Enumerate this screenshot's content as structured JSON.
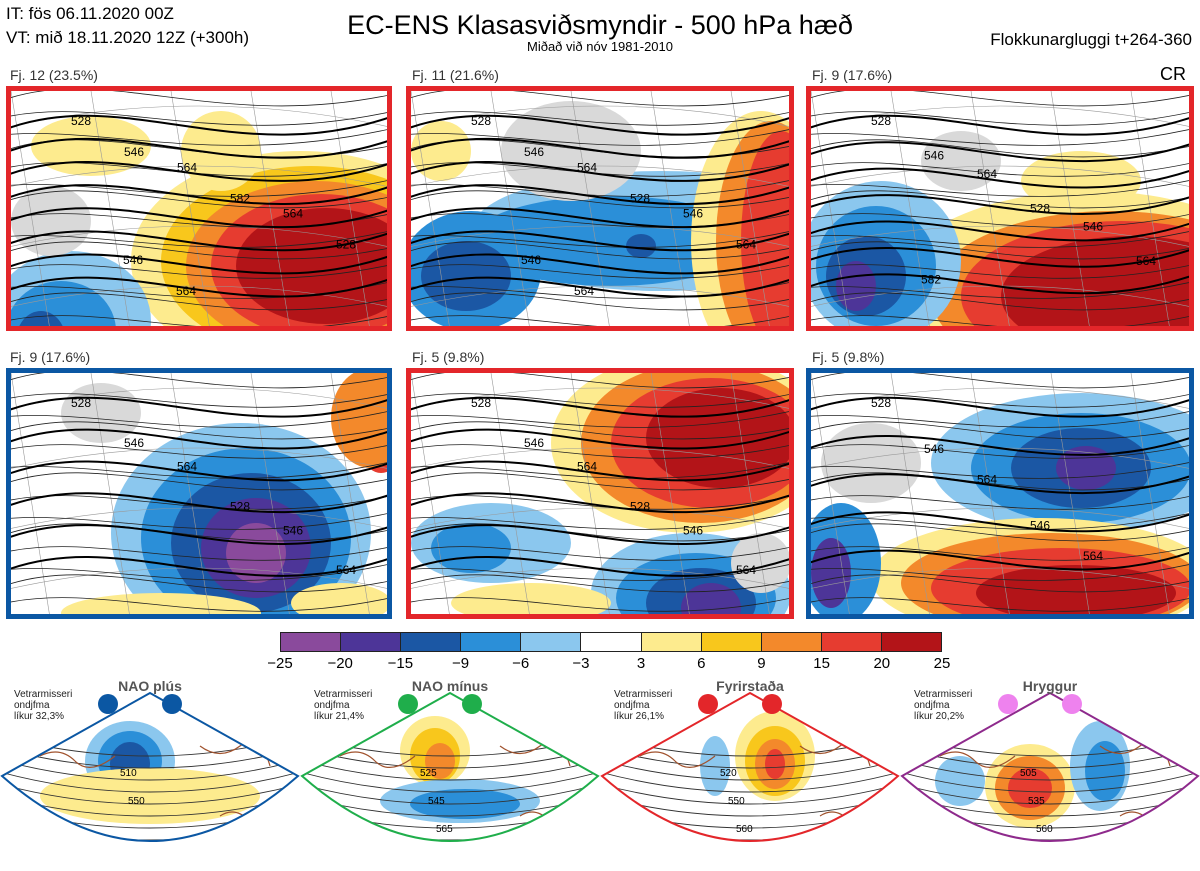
{
  "header": {
    "it": "IT: fös 06.11.2020 00Z",
    "vt": "VT: mið 18.11.2020 12Z  (+300h)",
    "title": "EC-ENS Klasasviðsmyndir - 500 hPa hæð",
    "subtitle": "Miðað við nóv 1981-2010",
    "window": "Flokkunargluggi t+264-360",
    "tag": "CR"
  },
  "panels": [
    {
      "label": "Fj. 12 (23.5%)",
      "frame_color": "#e3262a",
      "contours": [
        "528",
        "546",
        "564",
        "582",
        "564",
        "528",
        "546",
        "564"
      ]
    },
    {
      "label": "Fj. 11 (21.6%)",
      "frame_color": "#e3262a",
      "contours": [
        "528",
        "546",
        "564",
        "528",
        "546",
        "564",
        "546",
        "564"
      ]
    },
    {
      "label": "Fj. 9 (17.6%)",
      "frame_color": "#e3262a",
      "contours": [
        "528",
        "546",
        "564",
        "528",
        "546",
        "564",
        "582"
      ]
    },
    {
      "label": "Fj. 9 (17.6%)",
      "frame_color": "#0b57a3",
      "contours": [
        "528",
        "546",
        "564",
        "528",
        "546",
        "564"
      ]
    },
    {
      "label": "Fj. 5 (9.8%)",
      "frame_color": "#e3262a",
      "contours": [
        "528",
        "546",
        "564",
        "528",
        "546",
        "564"
      ]
    },
    {
      "label": "Fj. 5 (9.8%)",
      "frame_color": "#0b57a3",
      "contours": [
        "528",
        "546",
        "564",
        "546",
        "564"
      ]
    }
  ],
  "colorbar": {
    "ticks": [
      "−25",
      "−20",
      "−15",
      "−9",
      "−6",
      "−3",
      "3",
      "6",
      "9",
      "15",
      "20",
      "25"
    ],
    "colors": [
      "#8a4a9c",
      "#4d3598",
      "#1b57a4",
      "#2b8fd8",
      "#8bc7ee",
      "#ffffff",
      "#fdeb8e",
      "#f8c71c",
      "#f3892b",
      "#e63c30",
      "#b31418"
    ]
  },
  "regimes": [
    {
      "name": "NAO plús",
      "color": "#0b57a3",
      "note": [
        "Vetrarmisseri",
        "ondjfma",
        "líkur 32,3%"
      ],
      "contours": [
        "510",
        "550"
      ]
    },
    {
      "name": "NAO mínus",
      "color": "#1fae4b",
      "note": [
        "Vetrarmisseri",
        "ondjfma",
        "líkur 21,4%"
      ],
      "contours": [
        "525",
        "545",
        "565"
      ]
    },
    {
      "name": "Fyrirstaða",
      "color": "#e3262a",
      "note": [
        "Vetrarmisseri",
        "ondjfma",
        "líkur 26,1%"
      ],
      "contours": [
        "520",
        "550",
        "560"
      ]
    },
    {
      "name": "Hryggur",
      "color": "#8e2a8c",
      "note": [
        "Vetrarmisseri",
        "ondjfma",
        "líkur 20,2%"
      ],
      "contours": [
        "505",
        "535",
        "560"
      ]
    }
  ]
}
